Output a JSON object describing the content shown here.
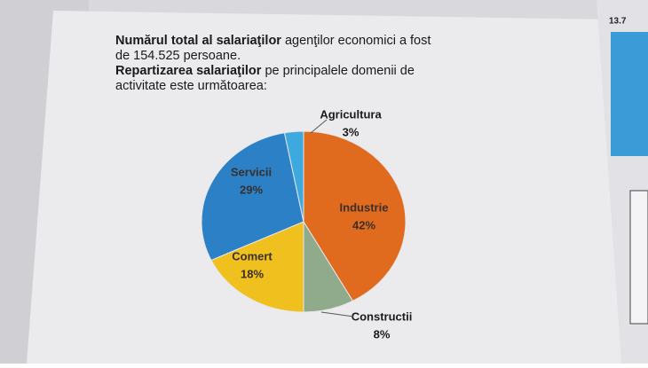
{
  "document": {
    "lines": [
      [
        {
          "text": "Numărul total al  salariaţilor",
          "bold": true
        },
        {
          "text": " agenţilor economici  a fost",
          "bold": false
        }
      ],
      [
        {
          "text": "de 154.525 persoane.",
          "bold": false
        }
      ],
      [
        {
          "text": "Repartizarea  salariaţilor",
          "bold": true
        },
        {
          "text": "  pe  principalele  domenii  de",
          "bold": false
        }
      ],
      [
        {
          "text": "activitate este următoarea:",
          "bold": false
        }
      ]
    ],
    "side_label": "13.7"
  },
  "chart_data": {
    "type": "pie",
    "categories": [
      "Industrie",
      "Constructii",
      "Comert",
      "Servicii",
      "Agricultura"
    ],
    "values": [
      42,
      8,
      18,
      29,
      3
    ],
    "value_labels": [
      "42%",
      "8%",
      "18%",
      "29%",
      "3%"
    ],
    "colors": [
      "#e06b1f",
      "#8fab8c",
      "#efc01e",
      "#2b80c6",
      "#3ea9df"
    ]
  }
}
